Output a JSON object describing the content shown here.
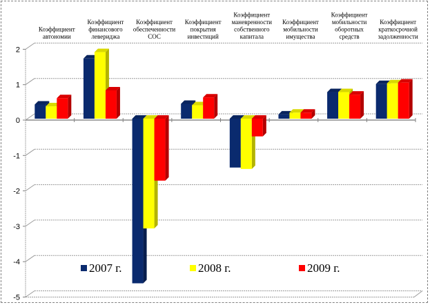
{
  "chart_data": {
    "type": "bar",
    "variant": "3d-clustered-column",
    "title": "",
    "xlabel": "",
    "ylabel": "",
    "ylim": [
      -5,
      2
    ],
    "yticks": [
      2,
      1,
      0,
      -1,
      -2,
      -3,
      -4,
      -5
    ],
    "grid": true,
    "legend_position": "bottom-inside",
    "categories": [
      [
        "Коэффициент",
        "автономии"
      ],
      [
        "Коэффициент",
        "финансового",
        "левериджа"
      ],
      [
        "Коэффициент",
        "обеспеченности",
        "СОС"
      ],
      [
        "Коэффициент",
        "покрытия",
        "инвестиций"
      ],
      [
        "Коэффициент",
        "маневренности",
        "собственного",
        "капитала"
      ],
      [
        "Коэффициент",
        "мобильности",
        "имущества"
      ],
      [
        "Коэффициент",
        "мобильности",
        "оборотных",
        "средств"
      ],
      [
        "Коэффициент",
        "краткосрочной",
        "задолженности"
      ]
    ],
    "series": [
      {
        "name": "2007 г.",
        "color": "#0a2a6e",
        "values": [
          0.4,
          1.7,
          -4.65,
          0.42,
          -1.38,
          0.12,
          0.75,
          0.98
        ]
      },
      {
        "name": "2008 г.",
        "color": "#ffff00",
        "values": [
          0.35,
          1.88,
          -3.1,
          0.38,
          -1.42,
          0.17,
          0.75,
          1.0
        ]
      },
      {
        "name": "2009 г.",
        "color": "#ff0000",
        "values": [
          0.58,
          0.8,
          -1.75,
          0.6,
          -0.5,
          0.17,
          0.68,
          1.02
        ]
      }
    ]
  }
}
